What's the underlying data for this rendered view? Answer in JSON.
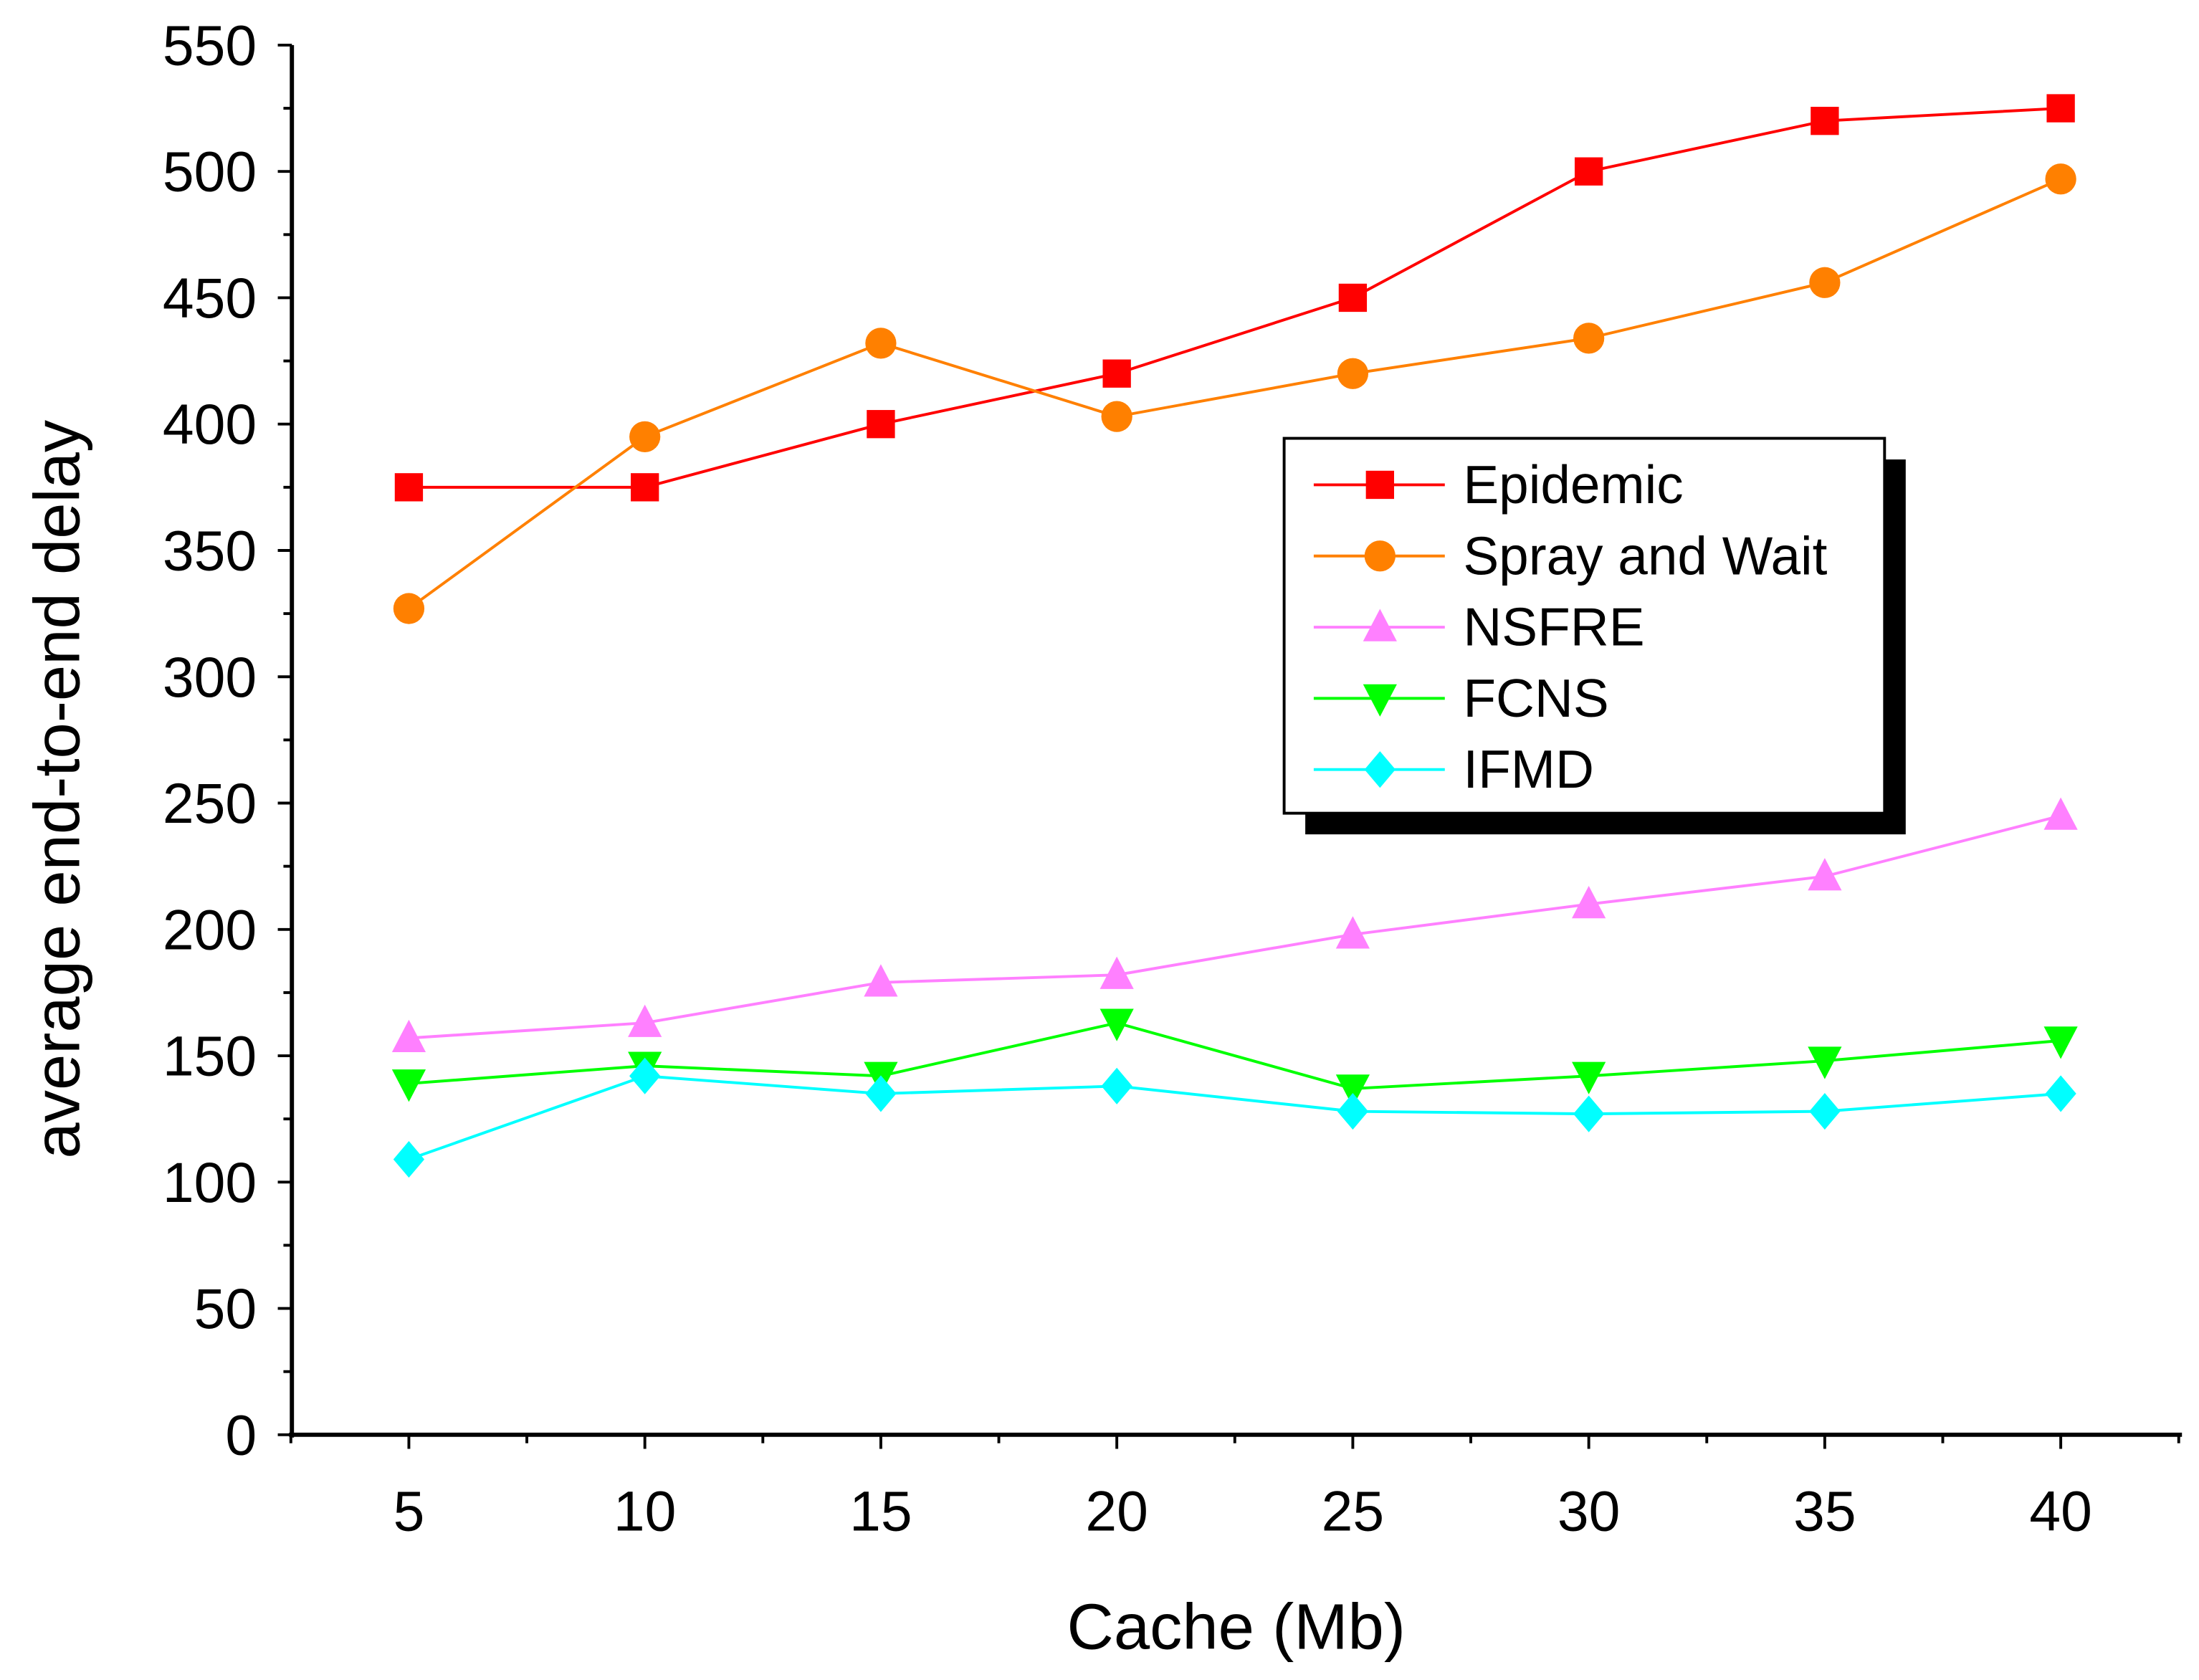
{
  "chart_data": {
    "type": "line",
    "title": "",
    "xlabel": "Cache (Mb)",
    "ylabel": "average end-to-end delay",
    "x": [
      5,
      10,
      15,
      20,
      25,
      30,
      35,
      40
    ],
    "xlim": [
      2.5,
      42.5
    ],
    "ylim": [
      0,
      550
    ],
    "xticks": [
      5,
      10,
      15,
      20,
      25,
      30,
      35,
      40
    ],
    "yticks": [
      0,
      50,
      100,
      150,
      200,
      250,
      300,
      350,
      400,
      450,
      500,
      550
    ],
    "grid": false,
    "legend_position": "center-right",
    "series": [
      {
        "name": "Epidemic",
        "color": "#ff0000",
        "marker": "square",
        "values": [
          375,
          375,
          400,
          420,
          450,
          500,
          520,
          525
        ]
      },
      {
        "name": "Spray and Wait",
        "color": "#ff8000",
        "marker": "circle",
        "values": [
          327,
          395,
          432,
          403,
          420,
          434,
          456,
          497
        ]
      },
      {
        "name": "NSFRE",
        "color": "#ff80ff",
        "marker": "triangle-up",
        "values": [
          157,
          163,
          179,
          182,
          198,
          210,
          221,
          245
        ]
      },
      {
        "name": "FCNS",
        "color": "#00ff00",
        "marker": "triangle-down",
        "values": [
          139,
          146,
          142,
          163,
          137,
          142,
          148,
          156
        ]
      },
      {
        "name": "IFMD",
        "color": "#00ffff",
        "marker": "diamond",
        "values": [
          109,
          142,
          135,
          138,
          128,
          127,
          128,
          135
        ]
      }
    ]
  }
}
